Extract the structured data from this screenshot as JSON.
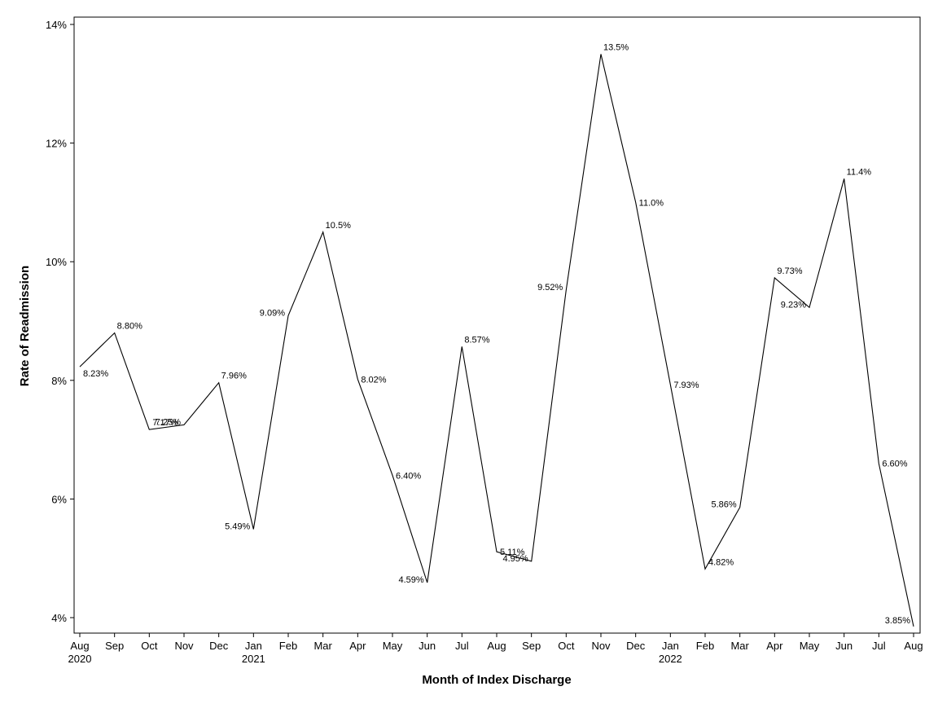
{
  "chart_data": {
    "type": "line",
    "title": "",
    "xlabel": "Month of Index Discharge",
    "ylabel": "Rate of Readmission",
    "ylim": [
      3.8,
      14.1
    ],
    "y_ticks": [
      4,
      6,
      8,
      10,
      12,
      14
    ],
    "y_tick_labels": [
      "4%",
      "6%",
      "8%",
      "10%",
      "12%",
      "14%"
    ],
    "grid": false,
    "legend": "none",
    "x_tick_labels": [
      {
        "month": "Aug",
        "year": "2020"
      },
      {
        "month": "Sep",
        "year": ""
      },
      {
        "month": "Oct",
        "year": ""
      },
      {
        "month": "Nov",
        "year": ""
      },
      {
        "month": "Dec",
        "year": ""
      },
      {
        "month": "Jan",
        "year": "2021"
      },
      {
        "month": "Feb",
        "year": ""
      },
      {
        "month": "Mar",
        "year": ""
      },
      {
        "month": "Apr",
        "year": ""
      },
      {
        "month": "May",
        "year": ""
      },
      {
        "month": "Jun",
        "year": ""
      },
      {
        "month": "Jul",
        "year": ""
      },
      {
        "month": "Aug",
        "year": ""
      },
      {
        "month": "Sep",
        "year": ""
      },
      {
        "month": "Oct",
        "year": ""
      },
      {
        "month": "Nov",
        "year": ""
      },
      {
        "month": "Dec",
        "year": ""
      },
      {
        "month": "Jan",
        "year": "2022"
      },
      {
        "month": "Feb",
        "year": ""
      },
      {
        "month": "Mar",
        "year": ""
      },
      {
        "month": "Apr",
        "year": ""
      },
      {
        "month": "May",
        "year": ""
      },
      {
        "month": "Jun",
        "year": ""
      },
      {
        "month": "Jul",
        "year": ""
      },
      {
        "month": "Aug",
        "year": ""
      }
    ],
    "series": [
      {
        "values": [
          8.23,
          8.8,
          7.17,
          7.25,
          7.96,
          5.49,
          9.09,
          10.5,
          8.02,
          6.4,
          4.59,
          8.57,
          5.11,
          4.95,
          9.52,
          13.5,
          11.0,
          7.93,
          4.82,
          5.86,
          9.73,
          9.23,
          11.4,
          6.6,
          3.85
        ],
        "labels": [
          "8.23%",
          "8.80%",
          "7.17%",
          "7.25%",
          "7.96%",
          "5.49%",
          "9.09%",
          "10.5%",
          "8.02%",
          "6.40%",
          "4.59%",
          "8.57%",
          "5.11%",
          "4.95%",
          "9.52%",
          "13.5%",
          "11.0%",
          "7.93%",
          "4.82%",
          "5.86%",
          "9.73%",
          "9.23%",
          "11.4%",
          "6.60%",
          "3.85%"
        ],
        "color": "#000000"
      }
    ]
  }
}
